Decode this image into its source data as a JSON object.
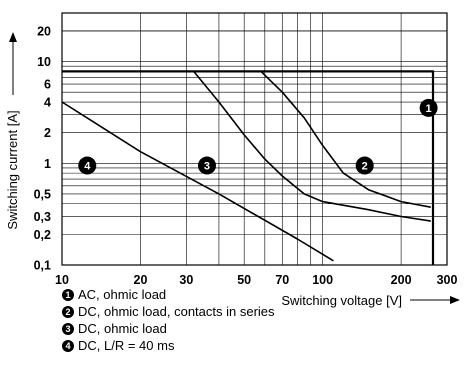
{
  "chart_data": {
    "type": "line",
    "xlabel": "Switching voltage [V]",
    "ylabel": "Switching current [A]",
    "xscale": "log",
    "yscale": "log",
    "xlim": [
      10,
      300
    ],
    "ylim": [
      0.1,
      30
    ],
    "x_ticks": [
      10,
      20,
      30,
      50,
      70,
      100,
      200,
      300
    ],
    "x_tick_labels": [
      "10",
      "20",
      "30",
      "50",
      "70",
      "100",
      "200",
      "300"
    ],
    "y_ticks": [
      0.1,
      0.2,
      0.3,
      0.5,
      1,
      2,
      4,
      6,
      10,
      20
    ],
    "y_tick_labels": [
      "0,1",
      "0,2",
      "0,3",
      "0,5",
      "1",
      "2",
      "4",
      "6",
      "10",
      "20"
    ],
    "grid": true,
    "series": [
      {
        "marker": "1",
        "x": [
          10,
          265,
          265
        ],
        "y": [
          8,
          8,
          0.1
        ]
      },
      {
        "marker": "2",
        "x": [
          58,
          70,
          85,
          100,
          120,
          150,
          200,
          260
        ],
        "y": [
          8,
          5,
          2.8,
          1.5,
          0.8,
          0.55,
          0.42,
          0.37
        ]
      },
      {
        "marker": "3",
        "x": [
          32,
          40,
          50,
          60,
          70,
          85,
          100,
          150,
          200,
          260
        ],
        "y": [
          8,
          4,
          1.9,
          1.1,
          0.75,
          0.5,
          0.42,
          0.35,
          0.3,
          0.27
        ]
      },
      {
        "marker": "4",
        "x": [
          10,
          20,
          40,
          80,
          110
        ],
        "y": [
          4,
          1.3,
          0.5,
          0.18,
          0.11
        ]
      }
    ],
    "legend": {
      "placement": "bottom-left",
      "entries": [
        {
          "marker": "1",
          "label": "AC, ohmic load"
        },
        {
          "marker": "2",
          "label": "DC, ohmic load, contacts in series"
        },
        {
          "marker": "3",
          "label": "DC, ohmic load"
        },
        {
          "marker": "4",
          "label": "DC, L/R = 40 ms"
        }
      ]
    },
    "plot_markers": [
      {
        "label": "1",
        "x": 255,
        "y": 3.5
      },
      {
        "label": "2",
        "x": 145,
        "y": 0.95
      },
      {
        "label": "3",
        "x": 36,
        "y": 0.95
      },
      {
        "label": "4",
        "x": 12.5,
        "y": 0.95
      }
    ]
  }
}
